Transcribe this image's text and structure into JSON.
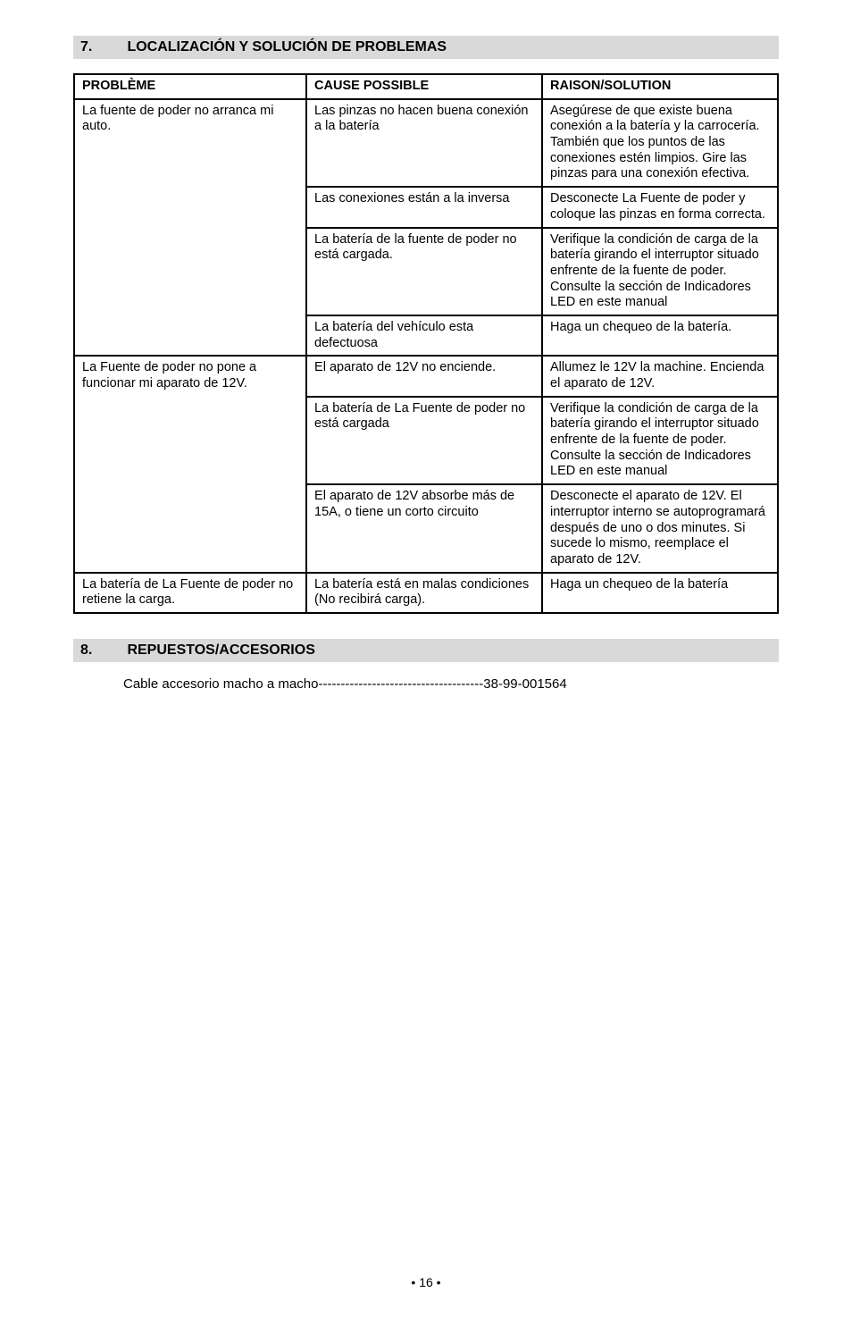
{
  "sections": {
    "troubleshoot": {
      "num": "7.",
      "title": "LOCALIZACIÓN Y SOLUCIÓN DE PROBLEMAS",
      "table": {
        "headers": [
          "PROBLÈME",
          "CAUSE POSSIBLE",
          "RAISON/SOLUTION"
        ],
        "groups": [
          {
            "problem": "La fuente de poder no arranca mi auto.",
            "rows": [
              {
                "cause": "Las pinzas no hacen buena conexión a la batería",
                "solution": "Asegúrese de que existe buena conexión a la batería y la carrocería. También que los puntos de las conexiones  estén limpios. Gire las pinzas para una conexión efectiva."
              },
              {
                "cause": "Las conexiones están a la inversa",
                "solution": "Desconecte La Fuente de poder y coloque las pinzas en forma correcta."
              },
              {
                "cause": "La batería de la fuente de poder no está cargada.",
                "solution": "Verifique la condición de carga de la batería girando el interruptor situado enfrente de la fuente de poder. Consulte la sección de Indicadores LED en este manual"
              },
              {
                "cause": "La batería del vehículo esta defectuosa",
                "solution": "Haga un chequeo de la batería."
              }
            ]
          },
          {
            "problem": "La Fuente de poder no pone a funcionar mi aparato de 12V.",
            "rows": [
              {
                "cause": "El aparato de 12V no enciende.",
                "solution": "Allumez le 12V la machine. Encienda el aparato de 12V."
              },
              {
                "cause": "La batería de La Fuente de poder no está cargada",
                "solution": "Verifique la condición de carga de la batería girando el interruptor situado enfrente de la fuente de poder. Consulte la sección de Indicadores LED en este manual"
              },
              {
                "cause": "El aparato de 12V absorbe más de 15A, o tiene un corto circuito",
                "solution": "Desconecte el aparato de 12V. El interruptor interno se autoprogramará después de uno o dos minutes. Si sucede lo mismo, reemplace el aparato de 12V."
              }
            ]
          },
          {
            "problem": "La batería de La Fuente de poder no retiene la carga.",
            "rows": [
              {
                "cause": "La batería está en malas condiciones (No recibirá carga).",
                "solution": "Haga un chequeo de la batería"
              }
            ]
          }
        ]
      }
    },
    "parts": {
      "num": "8.",
      "title": "REPUESTOS/ACCESORIOS",
      "line_label": "Cable accesorio macho a macho",
      "line_dashes": "-------------------------------------",
      "line_value": "38-99-001564"
    }
  },
  "page_number": "• 16 •"
}
